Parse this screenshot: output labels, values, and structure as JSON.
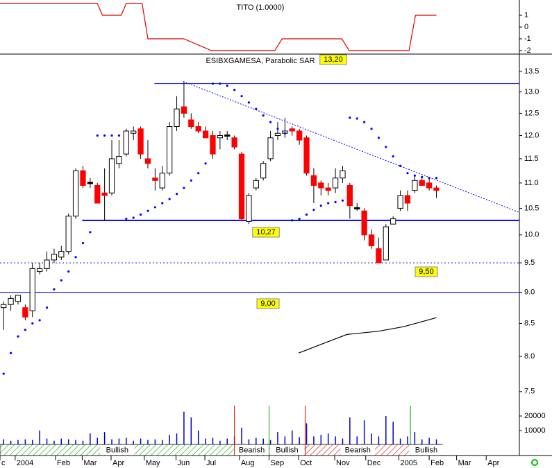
{
  "chart_data": [
    {
      "type": "line",
      "title": "TITO (1.0000)",
      "color": "#e00000",
      "x": [
        0,
        13.5,
        14.2,
        16.8,
        17.5,
        19.7,
        20.5,
        25.5,
        29.3,
        38.1,
        39.1,
        47.4,
        48.4,
        56.7,
        57.6,
        60.5
      ],
      "values": [
        2,
        2,
        1,
        1,
        2,
        2,
        -1,
        -1,
        -2,
        -2,
        -1,
        -1,
        -2,
        -2,
        1,
        1
      ],
      "xlim": [
        0,
        72
      ],
      "ylim": [
        -2.3,
        2.3
      ],
      "yticks": [
        1,
        0,
        -1,
        -2
      ]
    },
    {
      "type": "candlestick",
      "title": "ESIBXGAMESA, Parabolic SAR",
      "log": true,
      "up_color": "#ffffff",
      "down_color": "#ff0000",
      "flat_color": "#000000",
      "x": [
        0.5,
        1.5,
        2.5,
        3.5,
        4.5,
        5.5,
        6.5,
        7.5,
        8.5,
        9.5,
        10.5,
        11.5,
        12.5,
        13.5,
        14.5,
        15.5,
        16.5,
        17.5,
        18.5,
        19.5,
        20.5,
        21.5,
        22.5,
        23.5,
        24.5,
        25.5,
        26.5,
        27.5,
        28.5,
        29.5,
        30.5,
        31.5,
        32.5,
        33.5,
        34.5,
        35.5,
        36.5,
        37.5,
        38.5,
        39.5,
        40.5,
        41.5,
        42.5,
        43.5,
        44.5,
        45.5,
        46.5,
        47.5,
        48.5,
        49.5,
        50.5,
        51.5,
        52.5,
        53.5,
        54.5,
        55.5,
        56.5,
        57.5,
        58.5,
        59.5,
        60.5
      ],
      "open": [
        8.75,
        8.8,
        8.85,
        8.75,
        8.7,
        9.35,
        9.4,
        9.55,
        9.6,
        9.7,
        10.35,
        11.25,
        11.0,
        10.95,
        10.8,
        10.8,
        11.4,
        11.6,
        12.05,
        12.15,
        11.5,
        11.1,
        10.9,
        11.2,
        12.2,
        12.65,
        12.35,
        12.2,
        12.1,
        12.0,
        11.95,
        12.0,
        11.95,
        11.6,
        10.25,
        10.9,
        11.1,
        11.5,
        12.0,
        12.05,
        12.15,
        12.1,
        11.95,
        11.15,
        11.0,
        10.9,
        10.9,
        11.1,
        10.95,
        10.5,
        10.45,
        10.0,
        9.75,
        9.55,
        10.2,
        10.5,
        10.75,
        10.85,
        11.05,
        11.0,
        10.9
      ],
      "high": [
        8.85,
        8.95,
        8.95,
        8.8,
        9.5,
        9.5,
        9.7,
        9.75,
        9.8,
        10.4,
        11.3,
        11.35,
        11.1,
        11.0,
        11.3,
        11.9,
        11.9,
        12.15,
        12.2,
        12.2,
        11.9,
        11.3,
        11.35,
        12.3,
        12.9,
        13.25,
        12.5,
        12.3,
        12.2,
        12.1,
        12.1,
        12.1,
        12.0,
        11.65,
        10.8,
        11.1,
        11.45,
        12.1,
        12.3,
        12.4,
        12.2,
        12.15,
        12.0,
        11.3,
        11.05,
        11.0,
        11.3,
        11.35,
        11.0,
        10.6,
        10.5,
        10.1,
        9.95,
        10.2,
        10.35,
        10.85,
        10.85,
        11.15,
        11.1,
        11.1,
        10.95
      ],
      "low": [
        8.4,
        8.7,
        8.8,
        8.55,
        8.6,
        9.3,
        9.35,
        9.5,
        9.55,
        9.65,
        10.3,
        10.9,
        10.9,
        10.6,
        10.27,
        10.75,
        11.3,
        11.55,
        11.9,
        11.5,
        11.3,
        10.85,
        10.85,
        11.15,
        12.1,
        12.4,
        12.15,
        12.05,
        11.95,
        11.5,
        11.7,
        11.9,
        11.7,
        10.27,
        10.2,
        10.85,
        11.05,
        11.45,
        11.9,
        11.95,
        12.0,
        11.8,
        11.15,
        10.6,
        10.75,
        10.75,
        10.8,
        11.0,
        10.3,
        10.45,
        9.9,
        9.75,
        9.5,
        9.55,
        10.2,
        10.45,
        10.45,
        10.8,
        10.95,
        10.85,
        10.7
      ],
      "close": [
        8.8,
        8.9,
        8.95,
        8.6,
        9.4,
        9.4,
        9.55,
        9.65,
        9.7,
        10.35,
        11.25,
        10.95,
        11.0,
        10.6,
        10.75,
        11.5,
        11.55,
        12.1,
        12.1,
        11.6,
        11.4,
        11.05,
        11.2,
        12.2,
        12.6,
        12.5,
        12.2,
        12.1,
        11.95,
        11.6,
        12.0,
        12.0,
        11.75,
        10.3,
        10.75,
        11.05,
        11.4,
        11.95,
        12.05,
        12.1,
        12.1,
        11.9,
        11.2,
        10.95,
        10.9,
        10.85,
        11.1,
        11.25,
        10.55,
        10.5,
        10.0,
        9.8,
        9.5,
        10.15,
        10.3,
        10.75,
        10.6,
        11.05,
        10.95,
        10.9,
        10.85
      ],
      "sar": {
        "color": "#0000ff",
        "values": [
          7.75,
          8.05,
          8.3,
          8.4,
          8.5,
          8.55,
          8.75,
          9.05,
          9.2,
          9.35,
          9.6,
          9.85,
          10.05,
          12.0,
          12.0,
          12.0,
          12.0,
          10.3,
          10.32,
          10.38,
          10.45,
          10.52,
          10.6,
          10.68,
          10.78,
          10.9,
          11.05,
          11.2,
          11.4,
          13.2,
          13.2,
          13.15,
          13.05,
          12.9,
          12.75,
          12.6,
          12.45,
          12.3,
          12.15,
          12.05,
          10.27,
          10.3,
          10.38,
          10.47,
          10.55,
          10.6,
          10.62,
          10.65,
          12.4,
          12.38,
          12.3,
          12.15,
          11.95,
          11.75,
          11.55,
          11.35,
          11.2,
          11.15,
          11.12,
          11.1,
          11.1
        ]
      },
      "average": {
        "color": "#000000",
        "x": [
          41.4,
          45,
          48.1,
          52.5,
          56,
          60.5
        ],
        "values": [
          8.05,
          8.2,
          8.33,
          8.38,
          8.45,
          8.59
        ]
      },
      "trendline": {
        "color": "#0000ff",
        "x": [
          25.4,
          72
        ],
        "values": [
          13.25,
          10.42
        ]
      },
      "hlines": [
        {
          "value": 13.2,
          "label": "13,20",
          "x": [
            21.4,
            72
          ],
          "style": "solid"
        },
        {
          "value": 10.27,
          "label": "10,27",
          "x": [
            11.4,
            72
          ],
          "style": "solid"
        },
        {
          "value": 9.5,
          "label": "9,50",
          "x": [
            0,
            72
          ],
          "style": "dotted"
        },
        {
          "value": 9.0,
          "label": "9,00",
          "x": [
            0,
            72
          ],
          "style": "solid"
        }
      ],
      "xlim": [
        0,
        72
      ],
      "ylim": [
        7.31,
        13.9
      ],
      "yticks": [
        {
          "value": 13.5,
          "label": "13.5"
        },
        {
          "value": 13,
          "label": "13.0"
        },
        {
          "value": 12.5,
          "label": "12.5"
        },
        {
          "value": 12,
          "label": "12.0"
        },
        {
          "value": 11.5,
          "label": "11.5"
        },
        {
          "value": 11,
          "label": "11.0"
        },
        {
          "value": 10.5,
          "label": "10.5"
        },
        {
          "value": 10,
          "label": "10.0"
        },
        {
          "value": 9.5,
          "label": "9.5"
        },
        {
          "value": 9,
          "label": "9.0"
        },
        {
          "value": 8.5,
          "label": "8.5"
        },
        {
          "value": 8,
          "label": "8.0"
        },
        {
          "value": 7.5,
          "label": "7.5"
        }
      ],
      "xticks": [
        {
          "value": 0,
          "label": "c"
        },
        {
          "value": 2.1,
          "label": "2004"
        },
        {
          "value": 7.7,
          "label": "Feb"
        },
        {
          "value": 11.4,
          "label": "Mar"
        },
        {
          "value": 15.4,
          "label": "Apr"
        },
        {
          "value": 20.0,
          "label": "May"
        },
        {
          "value": 24.4,
          "label": "Jun"
        },
        {
          "value": 28.4,
          "label": "Jul"
        },
        {
          "value": 33.2,
          "label": "Aug"
        },
        {
          "value": 37.3,
          "label": "Sep"
        },
        {
          "value": 41.4,
          "label": "Oct"
        },
        {
          "value": 46.4,
          "label": "Nov"
        },
        {
          "value": 50.7,
          "label": "Dec"
        },
        {
          "value": 55.3,
          "label": "2005"
        },
        {
          "value": 59.5,
          "label": "Feb"
        },
        {
          "value": 63.3,
          "label": "Mar"
        },
        {
          "value": 67.4,
          "label": "Apr"
        }
      ]
    },
    {
      "type": "bar",
      "color": "#0000cc",
      "x": [
        0.5,
        1.5,
        2.5,
        3.5,
        4.5,
        5.5,
        6.5,
        7.5,
        8.5,
        9.5,
        10.5,
        11.5,
        12.5,
        13.5,
        14.5,
        15.5,
        16.5,
        17.5,
        18.5,
        19.5,
        20.5,
        21.5,
        22.5,
        23.5,
        24.5,
        25.5,
        26.5,
        27.5,
        28.5,
        29.5,
        30.5,
        31.5,
        32.5,
        33.5,
        34.5,
        35.5,
        36.5,
        37.5,
        38.5,
        39.5,
        40.5,
        41.5,
        42.5,
        43.5,
        44.5,
        45.5,
        46.5,
        47.5,
        48.5,
        49.5,
        50.5,
        51.5,
        52.5,
        53.5,
        54.5,
        55.5,
        56.5,
        57.5,
        58.5,
        59.5,
        60.5
      ],
      "values": [
        4000,
        3000,
        3500,
        4000,
        3500,
        10000,
        4500,
        3000,
        4500,
        4000,
        3500,
        3000,
        8000,
        5000,
        9000,
        4000,
        4500,
        5000,
        3000,
        4500,
        3500,
        4000,
        3500,
        7000,
        8000,
        23000,
        19000,
        10000,
        4500,
        5000,
        3000,
        4500,
        6000,
        12000,
        4000,
        5000,
        4500,
        3500,
        9000,
        6000,
        10000,
        5500,
        15000,
        6000,
        7000,
        8000,
        6000,
        4500,
        19000,
        6000,
        17000,
        8000,
        6000,
        20000,
        16000,
        4500,
        6000,
        9000,
        4000,
        5000,
        4000
      ],
      "xlim": [
        0,
        72
      ],
      "ylim": [
        0,
        25000
      ],
      "yticks": [
        20000,
        10000
      ],
      "bands": [
        {
          "label": "Bullish",
          "x": [
            0,
            32.5
          ],
          "color": "#00a000"
        },
        {
          "label": "Bearish",
          "x": [
            32.5,
            37.3
          ],
          "color": "#e00000"
        },
        {
          "label": "Bullish",
          "x": [
            37.3,
            42.3
          ],
          "color": "#00a000"
        },
        {
          "label": "Bearish",
          "x": [
            42.3,
            56.9
          ],
          "color": "#e00000"
        },
        {
          "label": "Bullish",
          "x": [
            56.9,
            61.3
          ],
          "color": "#00a000"
        }
      ]
    }
  ]
}
